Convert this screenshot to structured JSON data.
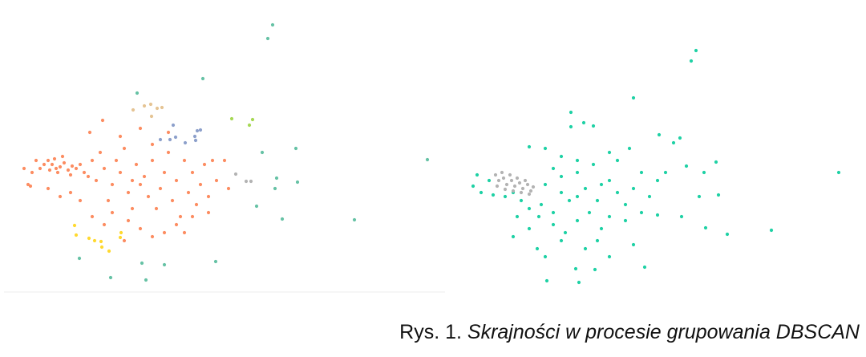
{
  "chart_data": [
    {
      "type": "scatter",
      "xlim": [
        0,
        555
      ],
      "ylim": [
        365,
        25
      ],
      "series": [
        {
          "color": "#fc8d62",
          "x": [
            60,
            65,
            70,
            75,
            80,
            85,
            90,
            72,
            68,
            78,
            88,
            95,
            100,
            105,
            62,
            55,
            50,
            45,
            40,
            35,
            30,
            38,
            110,
            120,
            115,
            125,
            130,
            140,
            135,
            145,
            150,
            155,
            160,
            165,
            170,
            175,
            180,
            185,
            190,
            195,
            200,
            205,
            210,
            215,
            220,
            225,
            230,
            235,
            240,
            245,
            250,
            255,
            260,
            265,
            270,
            280,
            285,
            128,
            112,
            150,
            175,
            88,
            100,
            115,
            130,
            160,
            175,
            190,
            205,
            220,
            240,
            260,
            60,
            75,
            155,
            190,
            210,
            230,
            165,
            140
          ],
          "values": [
            200,
            205,
            210,
            208,
            203,
            212,
            207,
            215,
            198,
            195,
            218,
            210,
            205,
            215,
            212,
            205,
            210,
            200,
            215,
            230,
            210,
            232,
            220,
            225,
            200,
            190,
            210,
            230,
            250,
            200,
            215,
            185,
            240,
            225,
            205,
            230,
            220,
            245,
            200,
            260,
            235,
            215,
            190,
            250,
            225,
            270,
            200,
            240,
            215,
            255,
            230,
            205,
            245,
            200,
            225,
            200,
            235,
            150,
            165,
            170,
            160,
            240,
            250,
            270,
            280,
            275,
            285,
            295,
            290,
            280,
            270,
            265,
            235,
            245,
            300,
            180,
            165,
            290,
            260,
            265
          ]
        },
        {
          "color": "#66c2a5",
          "x": [
            340,
            334,
            253,
            171,
            327,
            369,
            345,
            371,
            343,
            320,
            352,
            442,
            533,
            99,
            177,
            205,
            269,
            138,
            182
          ],
          "values": [
            31,
            48,
            98,
            116,
            190,
            185,
            222,
            227,
            235,
            257,
            273,
            274,
            199,
            322,
            328,
            330,
            326,
            346,
            349
          ]
        },
        {
          "color": "#e5c494",
          "x": [
            166,
            180,
            188,
            196,
            202,
            189
          ],
          "values": [
            137,
            132,
            130,
            135,
            134,
            145
          ]
        },
        {
          "color": "#8da0cb",
          "x": [
            216,
            246,
            250,
            243,
            219,
            231,
            244,
            200,
            212
          ],
          "values": [
            156,
            163,
            162,
            170,
            171,
            178,
            175,
            174,
            174
          ]
        },
        {
          "color": "#a6d854",
          "x": [
            289,
            315,
            311
          ],
          "values": [
            148,
            149,
            156
          ]
        },
        {
          "color": "#ffd92f",
          "x": [
            93,
            95,
            111,
            118,
            126,
            127,
            136,
            151,
            150
          ],
          "values": [
            281,
            293,
            297,
            300,
            301,
            308,
            313,
            290,
            296
          ]
        },
        {
          "color": "#b3b3b3",
          "x": [
            294,
            307,
            313
          ],
          "values": [
            217,
            226,
            226
          ]
        }
      ]
    },
    {
      "type": "scatter",
      "xlim": [
        570,
        1070
      ],
      "ylim": [
        365,
        25
      ],
      "series": [
        {
          "color": "#1fd1a5",
          "x": [
            868,
            862,
            790,
            712,
            712,
            728,
            740,
            822,
            848,
            840,
            785,
            760,
            680,
            660,
            700,
            720,
            740,
            770,
            800,
            830,
            856,
            878,
            893,
            1046,
            595,
            590,
            600,
            610,
            680,
            700,
            710,
            720,
            730,
            750,
            760,
            770,
            780,
            790,
            810,
            820,
            700,
            690,
            720,
            735,
            745,
            760,
            675,
            660,
            650,
            640,
            630,
            615,
            672,
            690,
            705,
            720,
            750,
            780,
            800,
            820,
            850,
            872,
            896,
            880,
            907,
            962,
            640,
            670,
            700,
            730,
            760,
            790,
            680,
            718,
            742,
            804,
            682,
            722,
            745,
            660,
            645,
            690
          ],
          "values": [
            63,
            76,
            122,
            140,
            158,
            153,
            157,
            168,
            172,
            178,
            185,
            190,
            185,
            183,
            195,
            200,
            205,
            200,
            215,
            215,
            207,
            215,
            202,
            215,
            218,
            232,
            240,
            225,
            230,
            240,
            250,
            245,
            235,
            230,
            225,
            240,
            255,
            235,
            245,
            225,
            220,
            210,
            215,
            265,
            250,
            270,
            255,
            260,
            250,
            240,
            245,
            243,
            270,
            280,
            290,
            275,
            285,
            275,
            265,
            268,
            270,
            245,
            243,
            284,
            292,
            287,
            295,
            310,
            300,
            310,
            320,
            305,
            320,
            335,
            336,
            333,
            350,
            352,
            300,
            285,
            270,
            265
          ]
        },
        {
          "color": "#b3b3b3",
          "x": [
            618,
            622,
            628,
            632,
            638,
            642,
            648,
            652,
            658,
            662,
            626,
            636,
            645,
            655,
            620,
            630,
            640,
            650,
            660,
            665
          ],
          "values": [
            218,
            225,
            222,
            230,
            225,
            232,
            228,
            235,
            230,
            238,
            215,
            218,
            222,
            225,
            232,
            236,
            238,
            240,
            242,
            233
          ]
        }
      ]
    }
  ],
  "caption": {
    "label": "Rys. 1.",
    "text": "Skrajności w procesie grupowania DBSCAN"
  }
}
